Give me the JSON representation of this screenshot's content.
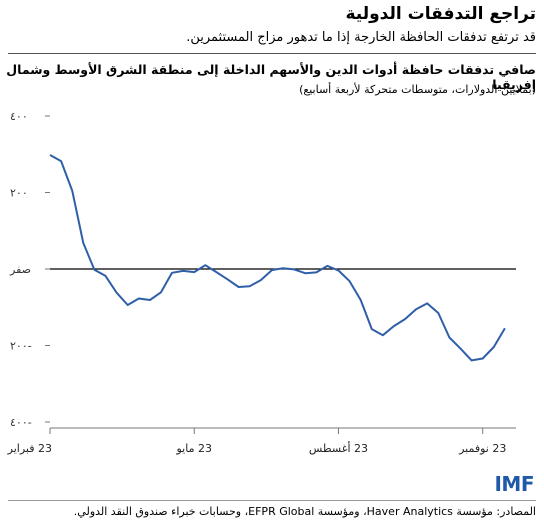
{
  "header": {
    "title": "تراجع التدفقات الدولية",
    "subtitle": "قد ترتفع تدفقات الحافظة الخارجة إذا ما تدهور مزاج المستثمرين."
  },
  "footer": {
    "brand": "IMF",
    "source": "المصادر: مؤسسة Haver Analytics، ومؤسسة EFPR Global، وحسابات خبراء صندوق النقد الدولي."
  },
  "chart_data": {
    "type": "line",
    "title": "صافي تدفقات حافظة أدوات الدين والأسهم الداخلة إلى منطقة الشرق الأوسط وشمال إفريقيا",
    "subtitle": "(بملايين الدولارات، متوسطات متحركة لأربعة أسابيع)",
    "ylim": [
      -400,
      400
    ],
    "yticks": [
      {
        "value": 400,
        "label": "٤٠٠"
      },
      {
        "value": 200,
        "label": "٢٠٠"
      },
      {
        "value": 0,
        "label": "صفر"
      },
      {
        "value": -200,
        "label": "٢٠٠-"
      },
      {
        "value": -400,
        "label": "٤٠٠-"
      }
    ],
    "xlim": [
      0,
      42
    ],
    "xticks": [
      {
        "value": 0,
        "label": "23 فبراير"
      },
      {
        "value": 13,
        "label": "23 مايو"
      },
      {
        "value": 26,
        "label": "23 أغسطس"
      },
      {
        "value": 39,
        "label": "23 نوفمبر"
      }
    ],
    "zero_line": true,
    "series": [
      {
        "color": "#2f5fa8",
        "x": [
          0,
          1,
          2,
          3,
          4,
          5,
          6,
          7,
          8,
          9,
          10,
          11,
          12,
          13,
          14,
          15,
          16,
          17,
          18,
          19,
          20,
          21,
          22,
          23,
          24,
          25,
          26,
          27,
          28,
          29,
          30,
          31,
          32,
          33,
          34,
          35,
          36,
          37,
          38,
          39,
          40,
          41
        ],
        "values": [
          298,
          282,
          205,
          68,
          -2,
          -18,
          -62,
          -94,
          -77,
          -81,
          -61,
          -10,
          -5,
          -8,
          10,
          -8,
          -27,
          -47,
          -45,
          -29,
          -3,
          2,
          -1,
          -11,
          -9,
          8,
          -4,
          -32,
          -81,
          -157,
          -173,
          -149,
          -131,
          -105,
          -90,
          -115,
          -179,
          -208,
          -239,
          -234,
          -204,
          -155
        ]
      }
    ]
  }
}
